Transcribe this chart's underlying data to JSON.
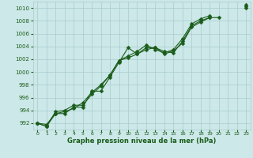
{
  "title": "",
  "xlabel": "Graphe pression niveau de la mer (hPa)",
  "bg_color": "#cce8e8",
  "plot_bg_color": "#cce8e8",
  "grid_color": "#aacccc",
  "line_color": "#1a5c1a",
  "marker": "D",
  "markersize": 2.5,
  "linewidth": 0.8,
  "xlim": [
    -0.5,
    23.5
  ],
  "ylim": [
    991,
    1011
  ],
  "yticks": [
    992,
    994,
    996,
    998,
    1000,
    1002,
    1004,
    1006,
    1008,
    1010
  ],
  "xticks": [
    0,
    1,
    2,
    3,
    4,
    5,
    6,
    7,
    8,
    9,
    10,
    11,
    12,
    13,
    14,
    15,
    16,
    17,
    18,
    19,
    20,
    21,
    22,
    23
  ],
  "series": [
    {
      "x": [
        0,
        1,
        2,
        3,
        4,
        5,
        6,
        7,
        8,
        9,
        10,
        11,
        12,
        13,
        14,
        15,
        16,
        17,
        18,
        19,
        20,
        21,
        22,
        23
      ],
      "y": [
        992.0,
        991.8,
        993.5,
        993.5,
        994.5,
        994.5,
        997.0,
        997.0,
        999.2,
        1001.5,
        1003.8,
        1002.8,
        1003.8,
        1003.8,
        1003.2,
        1003.0,
        1004.8,
        1007.2,
        1008.0,
        1008.5,
        1008.5,
        null,
        null,
        1010.3
      ]
    },
    {
      "x": [
        0,
        1,
        2,
        3,
        4,
        5,
        6,
        7,
        8,
        9,
        10,
        11,
        12,
        13,
        14,
        15,
        16,
        17,
        18,
        19,
        20,
        21,
        22,
        23
      ],
      "y": [
        992.0,
        991.5,
        993.8,
        994.0,
        994.8,
        994.8,
        996.5,
        997.8,
        999.5,
        1001.8,
        1002.5,
        1003.2,
        1004.2,
        1003.5,
        1003.0,
        1003.5,
        1005.2,
        1007.5,
        1008.3,
        1008.8,
        null,
        null,
        null,
        1010.5
      ]
    },
    {
      "x": [
        0,
        1,
        2,
        3,
        4,
        5,
        6,
        7,
        8,
        9,
        10,
        11,
        12,
        13,
        14,
        15,
        16,
        17,
        18,
        19,
        20,
        21,
        22,
        23
      ],
      "y": [
        992.0,
        991.5,
        993.5,
        993.8,
        994.3,
        995.2,
        996.8,
        998.0,
        999.5,
        1001.8,
        1002.2,
        1002.8,
        1003.5,
        1003.8,
        1002.8,
        1003.3,
        1004.5,
        1007.0,
        1007.8,
        1008.5,
        null,
        null,
        null,
        1010.0
      ]
    }
  ]
}
